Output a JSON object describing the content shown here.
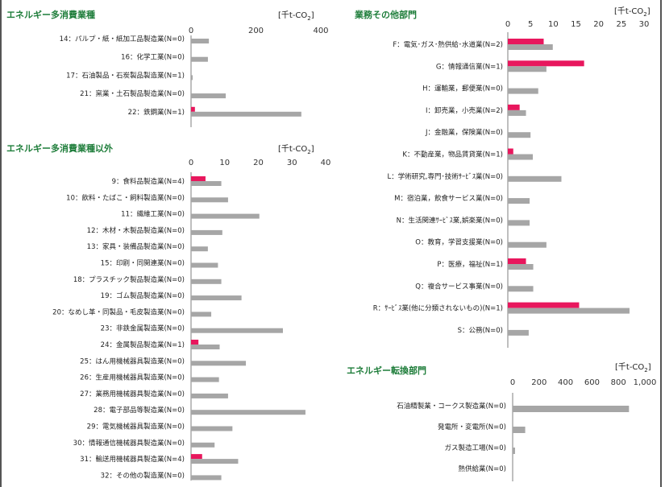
{
  "colors": {
    "series_a": "#e8175d",
    "series_b": "#a6a6a6",
    "axis": "#7f7f7f",
    "title": "#1e7d3a"
  },
  "panels": {
    "energy_intensive": {
      "title": "エネルギー多消費業種",
      "unit_prefix": "[千t-CO",
      "unit_sub": "2",
      "unit_suffix": "]"
    },
    "non_energy_intensive": {
      "title": "エネルギー多消費業種以外",
      "unit_prefix": "[千t-CO",
      "unit_sub": "2",
      "unit_suffix": "]"
    },
    "business_other": {
      "title": "業務その他部門",
      "unit_prefix": "[千t-CO",
      "unit_sub": "2",
      "unit_suffix": "]"
    },
    "energy_conversion": {
      "title": "エネルギー転換部門",
      "unit_prefix": "[千t-CO",
      "unit_sub": "2",
      "unit_suffix": "]"
    }
  },
  "chart_data": [
    {
      "type": "bar",
      "orientation": "horizontal",
      "title": "エネルギー多消費業種",
      "unit": "[千t-CO2]",
      "xlim": [
        0,
        400
      ],
      "xticks": [
        0,
        200,
        400
      ],
      "xtick_labels": [
        "0",
        "200",
        "400"
      ],
      "categories": [
        "14：パルプ・紙・紙加工品製造業(N=0)",
        "16：化学工業(N=0)",
        "17：石油製品・石炭製品製造業(N=1)",
        "21：窯業・土石製品製造業(N=0)",
        "22：鉄鋼業(N=1)"
      ],
      "series": [
        {
          "values": [
            0,
            0,
            0,
            0,
            12
          ]
        },
        {
          "values": [
            55,
            52,
            5,
            107,
            340
          ]
        }
      ]
    },
    {
      "type": "bar",
      "orientation": "horizontal",
      "title": "エネルギー多消費業種以外",
      "unit": "[千t-CO2]",
      "xlim": [
        0,
        40
      ],
      "xticks": [
        0,
        10,
        20,
        30,
        40
      ],
      "xtick_labels": [
        "0",
        "10",
        "20",
        "30",
        "40"
      ],
      "categories": [
        "9：食料品製造業(N=4)",
        "10：飲料・たばこ・飼料製造業(N=0)",
        "11：繊維工業(N=0)",
        "12：木材・木製品製造業(N=0)",
        "13：家具・装備品製造業(N=0)",
        "15：印刷・同関連業(N=0)",
        "18：プラスチック製品製造業(N=0)",
        "19：ゴム製品製造業(N=0)",
        "20：なめし革・同製品・毛皮製造業(N=0)",
        "23：非鉄金属製造業(N=0)",
        "24：金属製品製造業(N=1)",
        "25：はん用機械器具製造業(N=0)",
        "26：生産用機械器具製造業(N=0)",
        "27：業務用機械器具製造業(N=0)",
        "28：電子部品等製造業(N=0)",
        "29：電気機械器具製造業(N=0)",
        "30：情報通信機械器具製造業(N=0)",
        "31：輸送用機械器具製造業(N=4)",
        "32：その他の製造業(N=0)"
      ],
      "series": [
        {
          "values": [
            4.3,
            0,
            0,
            0,
            0,
            0,
            0,
            0,
            0,
            0,
            2.2,
            0,
            0,
            0,
            0,
            0,
            0,
            3.3,
            0
          ]
        },
        {
          "values": [
            9.0,
            11.0,
            20.3,
            9.3,
            5.0,
            8.0,
            9.0,
            15.0,
            6.0,
            27.3,
            8.5,
            16.3,
            8.3,
            11.0,
            34.0,
            12.3,
            7.0,
            14.0,
            9.0
          ]
        }
      ]
    },
    {
      "type": "bar",
      "orientation": "horizontal",
      "title": "業務その他部門",
      "unit": "[千t-CO2]",
      "xlim": [
        0,
        30
      ],
      "xticks": [
        0,
        5,
        10,
        15,
        20,
        25,
        30
      ],
      "xtick_labels": [
        "0",
        "5",
        "10",
        "15",
        "20",
        "25",
        "30"
      ],
      "categories": [
        "F：電気・ガス・熱供給・水道業(N=2)",
        "G：情報通信業(N=1)",
        "H：運輸業，郵便業(N=0)",
        "I：卸売業，小売業(N=2)",
        "J：金融業，保険業(N=0)",
        "K：不動産業，物品賃貸業(N=1)",
        "L：学術研究,専門・技術サービス業(N=0)",
        "M：宿泊業，飲食サービス業(N=0)",
        "N：生活関連サービス業,娯楽業(N=0)",
        "O：教育，学習支援業(N=0)",
        "P：医療，福祉(N=1)",
        "Q：複合サービス事業(N=0)",
        "R：サービス業(他に分類されないもの)(N=1)",
        "S：公務(N=0)"
      ],
      "category_labels": [
        "F：電気･ガス･熱供給･水道業(N=2)",
        "G：情報通信業(N=1)",
        "H：運輸業，郵便業(N=0)",
        "I：卸売業，小売業(N=2)",
        "J：金融業，保険業(N=0)",
        "K：不動産業，物品賃貸業(N=1)",
        "L：学術研究,専門･技術ｻｰﾋﾞｽ業(N=0)",
        "M：宿泊業，飲食サービス業(N=0)",
        "N：生活関連ｻｰﾋﾞｽ業,娯楽業(N=0)",
        "O：教育，学習支援業(N=0)",
        "P：医療，福祉(N=1)",
        "Q：複合サービス事業(N=0)",
        "R：ｻｰﾋﾞｽ業(他に分類されないもの)(N=1)",
        "S：公務(N=0)"
      ],
      "series": [
        {
          "values": [
            7.9,
            16.8,
            0,
            2.6,
            0,
            1.2,
            0,
            0,
            0,
            0,
            4.0,
            0,
            15.7,
            0
          ]
        },
        {
          "values": [
            9.9,
            8.5,
            6.7,
            4.0,
            5.0,
            5.5,
            11.8,
            4.8,
            4.8,
            8.5,
            5.6,
            5.6,
            26.8,
            4.6
          ]
        }
      ]
    },
    {
      "type": "bar",
      "orientation": "horizontal",
      "title": "エネルギー転換部門",
      "unit": "[千t-CO2]",
      "xlim": [
        0,
        1000
      ],
      "xticks": [
        0,
        200,
        400,
        600,
        800,
        1000
      ],
      "xtick_labels": [
        "0",
        "200",
        "400",
        "600",
        "800",
        "1,000"
      ],
      "categories": [
        "石油精製業・コークス製造業(N=0)",
        "発電所・変電所(N=0)",
        "ガス製造工場(N=0)",
        "熱供給業(N=0)"
      ],
      "series": [
        {
          "values": [
            0,
            0,
            0,
            0
          ]
        },
        {
          "values": [
            880,
            95,
            18,
            0
          ]
        }
      ]
    }
  ]
}
